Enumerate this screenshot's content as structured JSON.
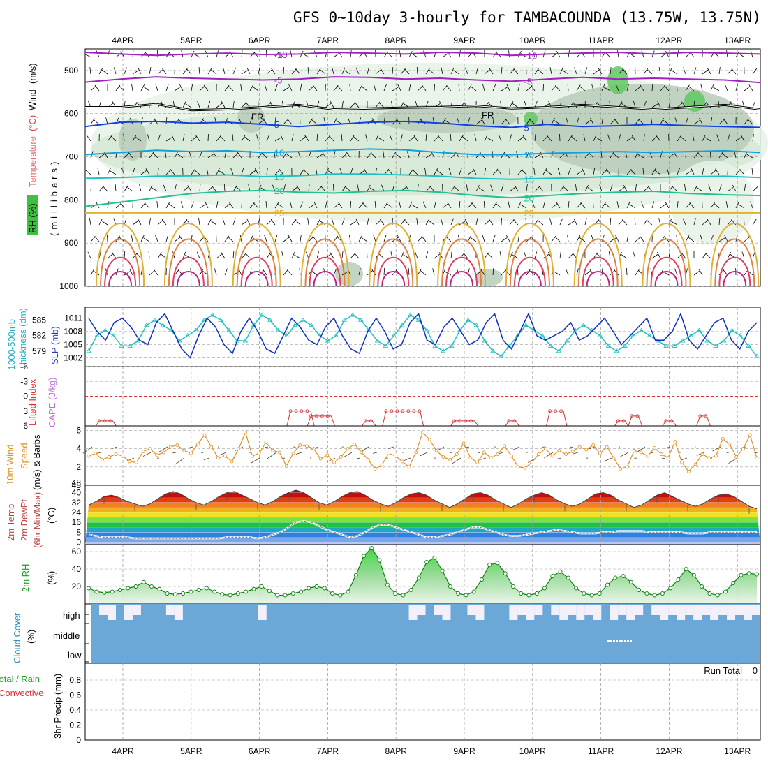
{
  "chart_data": {
    "type": "line",
    "title": "GFS 0~10day 3-hourly for TAMBACOUNDA (13.75W, 13.75N)",
    "dates": [
      "4APR",
      "5APR",
      "6APR",
      "7APR",
      "8APR",
      "9APR",
      "10APR",
      "11APR",
      "12APR",
      "13APR"
    ],
    "panels": {
      "upper_air": {
        "ylabel_parts": [
          {
            "text": "RH (%)",
            "color": "#000000"
          },
          {
            "text": "Temperature",
            "color": "#e07070"
          },
          {
            "text": "(°C)",
            "color": "#e04040"
          },
          {
            "text": "Wind",
            "color": "#000000"
          },
          {
            "text": "(m/s)",
            "color": "#000000"
          }
        ],
        "ylabel_units": "(millibars)",
        "pressure_ticks": [
          500,
          600,
          700,
          800,
          900,
          1000
        ],
        "ylim": [
          450,
          1000
        ],
        "freezing_label": "FR",
        "isotherms": [
          {
            "label": "-10",
            "color": "#a020c0",
            "p": [
              458,
              462,
              465,
              462,
              460,
              463,
              462,
              458,
              460,
              462,
              458,
              460,
              465,
              462,
              460,
              458,
              462,
              458,
              460,
              462
            ]
          },
          {
            "label": "-5",
            "color": "#a020c0",
            "p": [
              527,
              520,
              515,
              518,
              520,
              522,
              520,
              515,
              516,
              520,
              518,
              522,
              525,
              520,
              516,
              520,
              518,
              520,
              522,
              528
            ]
          },
          {
            "label": "FR",
            "color": "#000000",
            "p": [
              585,
              585,
              578,
              592,
              590,
              585,
              580,
              590,
              588,
              586,
              585,
              582,
              588,
              585,
              580,
              585,
              590,
              585,
              580,
              590
            ]
          },
          {
            "label": "5",
            "color": "#1040e0",
            "p": [
              630,
              620,
              618,
              622,
              620,
              625,
              630,
              625,
              620,
              618,
              622,
              628,
              632,
              625,
              630,
              628,
              625,
              628,
              630,
              632
            ]
          },
          {
            "label": "10",
            "color": "#10a0e0",
            "p": [
              695,
              690,
              685,
              688,
              686,
              690,
              688,
              685,
              682,
              684,
              690,
              695,
              695,
              692,
              690,
              688,
              690,
              688,
              686,
              690
            ]
          },
          {
            "label": "15",
            "color": "#20c0c0",
            "p": [
              750,
              748,
              745,
              744,
              742,
              746,
              744,
              740,
              740,
              742,
              745,
              750,
              752,
              750,
              748,
              745,
              748,
              746,
              745,
              748
            ]
          },
          {
            "label": "20",
            "color": "#20c090",
            "p": [
              815,
              805,
              795,
              785,
              780,
              778,
              782,
              784,
              780,
              778,
              782,
              790,
              795,
              790,
              785,
              782,
              780,
              785,
              788,
              790
            ]
          },
          {
            "label": "25",
            "color": "#e0b030",
            "p": [
              830,
              830,
              830,
              830,
              830,
              830,
              830,
              830,
              830,
              830,
              830,
              830,
              830,
              830,
              830,
              830,
              830,
              830,
              830,
              830
            ]
          }
        ],
        "contour_labels": [
          "-10",
          "-5",
          "5",
          "10",
          "15",
          "20",
          "25",
          "1",
          "30",
          "50"
        ]
      },
      "thickness_slp": {
        "ylabel_left": "Thickness (dm)",
        "ylabel_left_top": "1000-500mb",
        "ylabel_right": "SLP (mb)",
        "thickness_ticks": [
          579,
          582,
          585
        ],
        "slp_ticks": [
          1002,
          1005,
          1008,
          1011
        ],
        "slp": [
          1011,
          1008,
          1006,
          1010,
          1011,
          1009,
          1006,
          1005,
          1010,
          1012,
          1008,
          1004,
          1002,
          1007,
          1011,
          1009,
          1005,
          1003,
          1008,
          1011,
          1008,
          1004,
          1003,
          1007,
          1011,
          1009,
          1006,
          1005,
          1009,
          1011,
          1007,
          1004,
          1003,
          1008,
          1011,
          1008,
          1004,
          1005,
          1010,
          1012,
          1006,
          1005,
          1009,
          1011,
          1008,
          1005,
          1006,
          1010,
          1012,
          1006,
          1004,
          1008,
          1012,
          1007,
          1006,
          1007,
          1008,
          1010,
          1006,
          1007,
          1009,
          1011,
          1008,
          1005,
          1007,
          1009,
          1011,
          1006,
          1006,
          1008,
          1012,
          1006,
          1004,
          1007,
          1010,
          1011,
          1006,
          1004,
          1008,
          1010
        ],
        "thickness": [
          579,
          582,
          583,
          582,
          580,
          580,
          581,
          584,
          585,
          584,
          583,
          581,
          582,
          583,
          585,
          586,
          585,
          583,
          581,
          581,
          584,
          586,
          585,
          583,
          582,
          584,
          585,
          584,
          582,
          581,
          582,
          585,
          586,
          585,
          583,
          581,
          580,
          582,
          584,
          586,
          585,
          583,
          580,
          579,
          580,
          583,
          585,
          584,
          581,
          579,
          578,
          580,
          582,
          584,
          583,
          582,
          580,
          579,
          581,
          583,
          584,
          583,
          582,
          580,
          579,
          580,
          582,
          583,
          582,
          581,
          580,
          580,
          581,
          582,
          583,
          581,
          580,
          581,
          583,
          582,
          580,
          578
        ]
      },
      "cape_li": {
        "ylabel_left": "Lifted Index",
        "ylabel_right": "CAPE (J/kg)",
        "li_ticks": [
          "-6",
          "-3",
          "0",
          "3",
          "6"
        ],
        "li_zero_line": 0,
        "cape_segments": [
          {
            "x0": 0.0,
            "x1": 0.3,
            "v": 5
          },
          {
            "x0": 2.8,
            "x1": 3.2,
            "v": 3
          },
          {
            "x0": 3.1,
            "x1": 3.5,
            "v": 4
          },
          {
            "x0": 3.9,
            "x1": 4.1,
            "v": 5
          },
          {
            "x0": 4.2,
            "x1": 4.8,
            "v": 3
          },
          {
            "x0": 5.2,
            "x1": 5.6,
            "v": 5
          },
          {
            "x0": 6.0,
            "x1": 6.2,
            "v": 5
          },
          {
            "x0": 6.6,
            "x1": 6.9,
            "v": 3
          },
          {
            "x0": 7.6,
            "x1": 7.8,
            "v": 5
          },
          {
            "x0": 7.8,
            "x1": 8.0,
            "v": 4
          },
          {
            "x0": 8.3,
            "x1": 8.5,
            "v": 5
          },
          {
            "x0": 8.8,
            "x1": 9.0,
            "v": 4
          }
        ]
      },
      "wind10m": {
        "ylabel_left": "10m Wind",
        "ylabel_mid": "Speed",
        "ylabel_right": "(m/s) & Barbs",
        "ticks": [
          2,
          4,
          6
        ],
        "speed": [
          3.2,
          3.5,
          2.8,
          3.1,
          3.4,
          3.2,
          2.6,
          2.5,
          3.7,
          4.0,
          3.3,
          3.6,
          4.2,
          4.4,
          3.8,
          3.5,
          4.5,
          5.5,
          4.2,
          3.0,
          3.2,
          2.6,
          4.0,
          5.8,
          3.2,
          3.5,
          4.7,
          3.8,
          3.6,
          2.1,
          3.5,
          4.4,
          4.3,
          4.0,
          2.9,
          3.3,
          2.5,
          3.1,
          4.0,
          4.5,
          3.6,
          2.8,
          1.8,
          2.2,
          3.5,
          3.2,
          2.6,
          2.0,
          3.6,
          5.8,
          5.0,
          3.8,
          3.1,
          2.8,
          3.4,
          4.6,
          3.0,
          2.5,
          3.6,
          3.0,
          3.4,
          4.3,
          3.2,
          2.0,
          1.9,
          2.5,
          3.4,
          4.0,
          3.2,
          3.8,
          3.4,
          3.7,
          4.2,
          3.9,
          4.4,
          3.5,
          4.2,
          3.0,
          1.8,
          2.0,
          3.8,
          3.6,
          3.2,
          4.1,
          3.4,
          3.0,
          4.8,
          2.5,
          1.5,
          2.3,
          3.4,
          3.0,
          3.2,
          5.1,
          4.5,
          3.1,
          4.0,
          5.5,
          3.0
        ]
      },
      "temp2m": {
        "ylabel_1": "2m Temp",
        "ylabel_2": "2m DewPt",
        "ylabel_3": "(6hr Min/Max)",
        "ylabel_4": "(°C)",
        "ticks": [
          0,
          8,
          16,
          24,
          32,
          40,
          48
        ],
        "temp": [
          30,
          33,
          37,
          38,
          36,
          33,
          31,
          29,
          31,
          35,
          39,
          41,
          39,
          35,
          32,
          30,
          33,
          37,
          40,
          41,
          38,
          35,
          32,
          30,
          33,
          37,
          40,
          42,
          40,
          36,
          32,
          30,
          33,
          37,
          40,
          41,
          38,
          34,
          31,
          29,
          32,
          36,
          39,
          40,
          38,
          34,
          31,
          28,
          31,
          35,
          39,
          40,
          38,
          34,
          31,
          28,
          31,
          35,
          38,
          40,
          38,
          34,
          31,
          29,
          31,
          35,
          39,
          40,
          38,
          34,
          31,
          28,
          30,
          34,
          38,
          40,
          37,
          34,
          31,
          29,
          31,
          35,
          38,
          39,
          37,
          33,
          29,
          27
        ],
        "dewpt": [
          6,
          5,
          4,
          4,
          4,
          4,
          3,
          3,
          3,
          3,
          3,
          3,
          3,
          3,
          3,
          3,
          3,
          3,
          4,
          4,
          4,
          4,
          3,
          4,
          6,
          8,
          12,
          16,
          17,
          16,
          13,
          10,
          8,
          6,
          4,
          5,
          8,
          12,
          14,
          14,
          12,
          10,
          8,
          6,
          4,
          4,
          5,
          6,
          8,
          10,
          12,
          12,
          10,
          8,
          6,
          5,
          5,
          6,
          7,
          8,
          9,
          10,
          9,
          8,
          7,
          7,
          7,
          8,
          8,
          9,
          9,
          9,
          9,
          8,
          8,
          8,
          8,
          8,
          7,
          7,
          7,
          8,
          8,
          8,
          8,
          8,
          8,
          8
        ]
      },
      "rh2m": {
        "ylabel_left": "2m RH",
        "ylabel_right": "(%)",
        "ticks": [
          20,
          40,
          60
        ],
        "rh": [
          18,
          14,
          13,
          14,
          16,
          18,
          20,
          25,
          20,
          17,
          12,
          11,
          12,
          14,
          16,
          18,
          14,
          11,
          10,
          12,
          14,
          17,
          20,
          15,
          10,
          10,
          12,
          14,
          18,
          20,
          18,
          12,
          10,
          14,
          33,
          55,
          64,
          50,
          22,
          12,
          10,
          16,
          30,
          48,
          53,
          38,
          20,
          12,
          10,
          14,
          28,
          45,
          47,
          35,
          20,
          12,
          10,
          12,
          18,
          32,
          37,
          30,
          18,
          12,
          10,
          12,
          22,
          30,
          32,
          25,
          16,
          12,
          10,
          12,
          18,
          28,
          40,
          33,
          20,
          12,
          10,
          14,
          24,
          33,
          35,
          34
        ]
      },
      "cloud": {
        "ylabel_1": "Cloud Cover",
        "ylabel_2": "(%)",
        "levels": [
          "high",
          "middle",
          "low"
        ],
        "high_gaps": [
          0.02,
          0.06,
          0.12,
          0.25,
          0.48,
          0.52,
          0.57,
          0.63,
          0.72,
          0.78,
          0.85,
          0.88,
          0.92,
          0.95,
          0.97,
          0.99,
          0.66,
          0.69,
          0.74,
          0.8,
          0.81,
          0.84,
          0.86,
          0.9,
          0.94,
          0.96
        ]
      },
      "precip": {
        "ylabel_1": "Total / Rain",
        "ylabel_2": "Convective",
        "ylabel_3": "3hr Precip (mm)",
        "ticks": [
          "0",
          "0.2",
          "0.4",
          "0.6",
          "0.8"
        ],
        "run_total_label": "Run Total = 0"
      }
    },
    "colors": {
      "slp": "#1030c0",
      "thickness": "#20c0c0",
      "cape": "#d03030",
      "li_zero": "#e03030",
      "wind_speed": "#e09020",
      "wind_barbs": "#5a3a20",
      "temp_fill_top": "#6a2010",
      "dewpt_line": "#808080",
      "rh_line": "#108010",
      "rh_marker": "#108010",
      "cloud": "#6ba8d8",
      "grid": "#a0a0a0"
    }
  }
}
